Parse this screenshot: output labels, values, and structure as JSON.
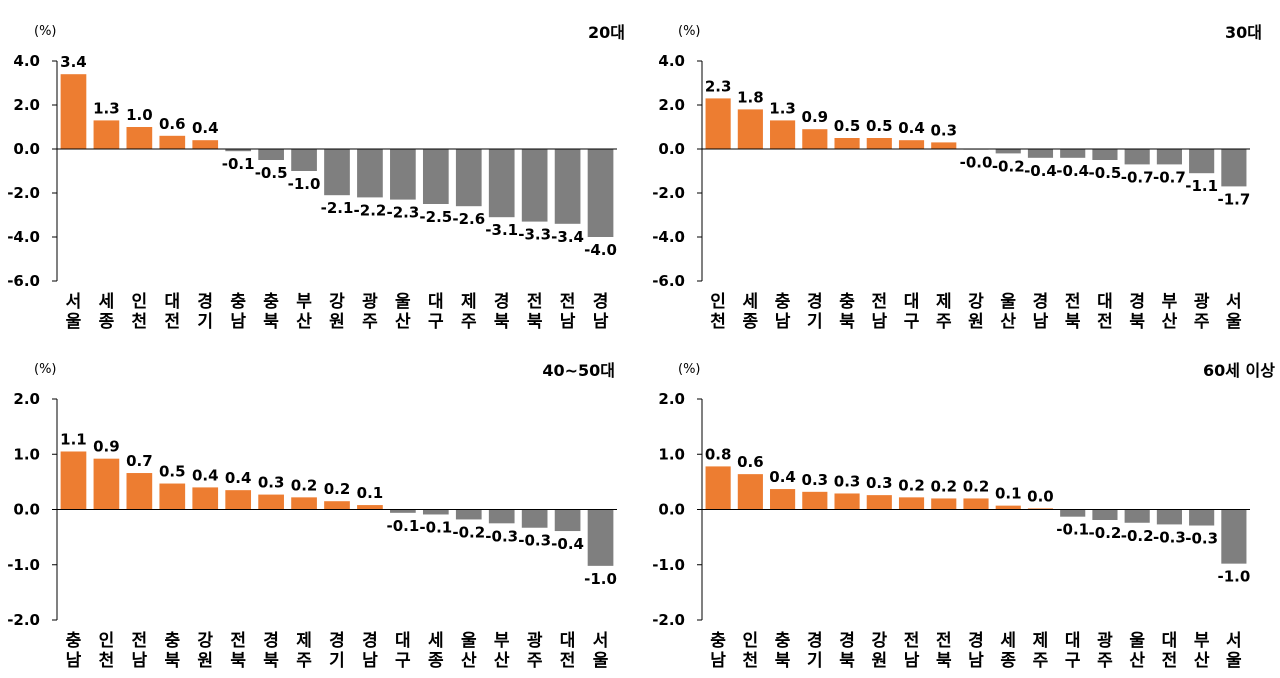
{
  "colors": {
    "positive": "#ED7D31",
    "negative": "#7F7F7F"
  },
  "chart_data": [
    {
      "type": "bar",
      "title": "20대",
      "unit": "(%)",
      "ylim": [
        -6.0,
        4.0
      ],
      "yticks": [
        "4.0",
        "2.0",
        "0.0",
        "-2.0",
        "-4.0",
        "-6.0"
      ],
      "categories": [
        "서울",
        "세종",
        "인천",
        "대전",
        "경기",
        "충남",
        "충북",
        "부산",
        "강원",
        "광주",
        "울산",
        "대구",
        "제주",
        "경북",
        "전북",
        "전남",
        "경남"
      ],
      "values": [
        3.4,
        1.3,
        1.0,
        0.6,
        0.4,
        -0.1,
        -0.5,
        -1.0,
        -2.1,
        -2.2,
        -2.3,
        -2.5,
        -2.6,
        -3.1,
        -3.3,
        -3.4,
        -4.0
      ],
      "labels": [
        "3.4",
        "1.3",
        "1.0",
        "0.6",
        "0.4",
        "-0.1",
        "-0.5",
        "-1.0",
        "-2.1",
        "-2.2",
        "-2.3",
        "-2.5",
        "-2.6",
        "-3.1",
        "-3.3",
        "-3.4",
        "-4.0"
      ]
    },
    {
      "type": "bar",
      "title": "30대",
      "unit": "(%)",
      "ylim": [
        -6.0,
        4.0
      ],
      "yticks": [
        "4.0",
        "2.0",
        "0.0",
        "-2.0",
        "-4.0",
        "-6.0"
      ],
      "categories": [
        "인천",
        "세종",
        "충남",
        "경기",
        "충북",
        "전남",
        "대구",
        "제주",
        "강원",
        "울산",
        "경남",
        "전북",
        "대전",
        "경북",
        "부산",
        "광주",
        "서울"
      ],
      "values": [
        2.3,
        1.8,
        1.3,
        0.9,
        0.5,
        0.5,
        0.4,
        0.3,
        -0.02,
        -0.2,
        -0.4,
        -0.4,
        -0.5,
        -0.7,
        -0.7,
        -1.1,
        -1.7
      ],
      "labels": [
        "2.3",
        "1.8",
        "1.3",
        "0.9",
        "0.5",
        "0.5",
        "0.4",
        "0.3",
        "-0.0",
        "-0.2",
        "-0.4",
        "-0.4",
        "-0.5",
        "-0.7",
        "-0.7",
        "-1.1",
        "-1.7"
      ]
    },
    {
      "type": "bar",
      "title": "40~50대",
      "unit": "(%)",
      "ylim": [
        -2.0,
        2.0
      ],
      "yticks": [
        "2.0",
        "1.0",
        "0.0",
        "-1.0",
        "-2.0"
      ],
      "categories": [
        "충남",
        "인천",
        "전남",
        "충북",
        "강원",
        "전북",
        "경북",
        "제주",
        "경기",
        "경남",
        "대구",
        "세종",
        "울산",
        "부산",
        "광주",
        "대전",
        "서울"
      ],
      "values": [
        1.05,
        0.92,
        0.66,
        0.47,
        0.4,
        0.35,
        0.27,
        0.22,
        0.15,
        0.08,
        -0.06,
        -0.09,
        -0.18,
        -0.25,
        -0.33,
        -0.39,
        -1.02
      ],
      "labels": [
        "1.1",
        "0.9",
        "0.7",
        "0.5",
        "0.4",
        "0.4",
        "0.3",
        "0.2",
        "0.2",
        "0.1",
        "-0.1",
        "-0.1",
        "-0.2",
        "-0.3",
        "-0.3",
        "-0.4",
        "-1.0"
      ]
    },
    {
      "type": "bar",
      "title": "60세 이상",
      "unit": "(%)",
      "ylim": [
        -2.0,
        2.0
      ],
      "yticks": [
        "2.0",
        "1.0",
        "0.0",
        "-1.0",
        "-2.0"
      ],
      "categories": [
        "충남",
        "인천",
        "충북",
        "경기",
        "경북",
        "강원",
        "전남",
        "전북",
        "경남",
        "세종",
        "제주",
        "대구",
        "광주",
        "울산",
        "대전",
        "부산",
        "서울"
      ],
      "values": [
        0.78,
        0.64,
        0.37,
        0.32,
        0.29,
        0.26,
        0.22,
        0.2,
        0.2,
        0.07,
        0.02,
        -0.13,
        -0.19,
        -0.24,
        -0.27,
        -0.29,
        -0.98
      ],
      "labels": [
        "0.8",
        "0.6",
        "0.4",
        "0.3",
        "0.3",
        "0.3",
        "0.2",
        "0.2",
        "0.2",
        "0.1",
        "0.0",
        "-0.1",
        "-0.2",
        "-0.2",
        "-0.3",
        "-0.3",
        "-1.0"
      ]
    }
  ]
}
